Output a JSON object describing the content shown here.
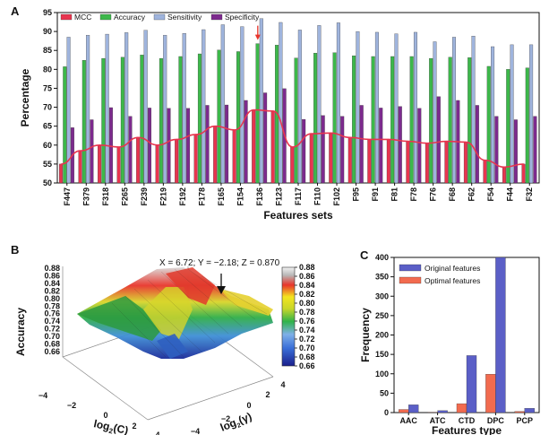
{
  "panels": {
    "a": "A",
    "b": "B",
    "c": "C"
  },
  "chart_data": [
    {
      "type": "bar",
      "panel": "A",
      "title": "",
      "xlabel": "Features sets",
      "ylabel": "Percentage",
      "ylim": [
        50,
        95
      ],
      "yticks": [
        50,
        55,
        60,
        65,
        70,
        75,
        80,
        85,
        90,
        95
      ],
      "grid": false,
      "legend": "top-left",
      "annotation": {
        "type": "arrow",
        "category": "F136",
        "color": "#e8352b"
      },
      "categories": [
        "F447",
        "F379",
        "F318",
        "F265",
        "F239",
        "F219",
        "F192",
        "F178",
        "F165",
        "F154",
        "F136",
        "F123",
        "F117",
        "F110",
        "F102",
        "F95",
        "F91",
        "F81",
        "F78",
        "F76",
        "F68",
        "F62",
        "F54",
        "F44",
        "F32"
      ],
      "series": [
        {
          "name": "MCC",
          "color": "#e8354f",
          "type": "bar-line",
          "values": [
            55.0,
            58.5,
            60.0,
            59.5,
            62.0,
            60.0,
            61.5,
            62.8,
            65.0,
            64.0,
            69.3,
            69.0,
            59.5,
            63.0,
            63.2,
            62.0,
            61.5,
            61.5,
            61.0,
            60.5,
            61.0,
            60.8,
            56.0,
            54.2,
            55.0
          ]
        },
        {
          "name": "Accuracy",
          "color": "#3cb84a",
          "values": [
            80.7,
            82.4,
            82.9,
            83.2,
            83.8,
            82.9,
            83.4,
            84.1,
            85.1,
            84.7,
            86.8,
            86.4,
            83.0,
            84.3,
            84.4,
            83.6,
            83.4,
            83.4,
            83.4,
            82.9,
            83.2,
            83.1,
            80.8,
            80.0,
            80.4
          ]
        },
        {
          "name": "Sensitivity",
          "color": "#9fb4dd",
          "values": [
            88.5,
            89.0,
            89.3,
            89.7,
            90.3,
            89.0,
            89.5,
            90.5,
            91.8,
            91.3,
            93.4,
            92.4,
            90.4,
            91.6,
            92.3,
            90.0,
            89.8,
            89.4,
            89.8,
            87.3,
            88.5,
            88.8,
            86.0,
            86.5,
            86.5
          ]
        },
        {
          "name": "Specificity",
          "color": "#7d2a8e",
          "values": [
            64.6,
            66.7,
            69.9,
            67.6,
            69.8,
            69.7,
            69.7,
            70.5,
            70.6,
            71.8,
            73.8,
            74.9,
            66.8,
            67.8,
            67.6,
            70.5,
            69.8,
            70.2,
            69.7,
            72.8,
            71.8,
            70.5,
            67.6,
            66.7,
            67.6
          ]
        }
      ]
    },
    {
      "type": "surface3d",
      "panel": "B",
      "title": "",
      "xlabel": "log2(C)",
      "ylabel": "log2(γ)",
      "zlabel": "Accuracy",
      "xlabel_base": "log",
      "xlabel_sub": "2",
      "xlabel_arg": "(C)",
      "ylabel_base": "log",
      "ylabel_sub": "2",
      "ylabel_arg": "(γ)",
      "zticks": [
        "0.88",
        "0.86",
        "0.84",
        "0.82",
        "0.80",
        "0.78",
        "0.76",
        "0.74",
        "0.72",
        "0.70",
        "0.68",
        "0.66"
      ],
      "xticks_shown": [
        "−4",
        "−2",
        "0",
        "2",
        "4"
      ],
      "yticks_shown": [
        "−4",
        "−2",
        "0",
        "2",
        "4"
      ],
      "colorbar_ticks": [
        "0.88",
        "0.86",
        "0.84",
        "0.82",
        "0.80",
        "0.78",
        "0.76",
        "0.74",
        "0.72",
        "0.70",
        "0.68",
        "0.66"
      ],
      "colorbar_range": [
        0.66,
        0.88
      ],
      "annotation": "X = 6.72; Y = −2.18; Z = 0.870"
    },
    {
      "type": "bar",
      "panel": "C",
      "title": "",
      "xlabel": "Features type",
      "ylabel": "Frequency",
      "ylim": [
        0,
        400
      ],
      "yticks": [
        0,
        50,
        100,
        150,
        200,
        250,
        300,
        350,
        400
      ],
      "legend": "top-left",
      "categories": [
        "AAC",
        "ATC",
        "CTD",
        "DPC",
        "PCP"
      ],
      "series": [
        {
          "name": "Original features",
          "color": "#5b5fc7",
          "values": [
            20,
            5,
            147,
            400,
            11
          ]
        },
        {
          "name": "Optimal features",
          "color": "#f26b4f",
          "values": [
            8,
            1,
            23,
            99,
            3
          ]
        }
      ]
    }
  ]
}
